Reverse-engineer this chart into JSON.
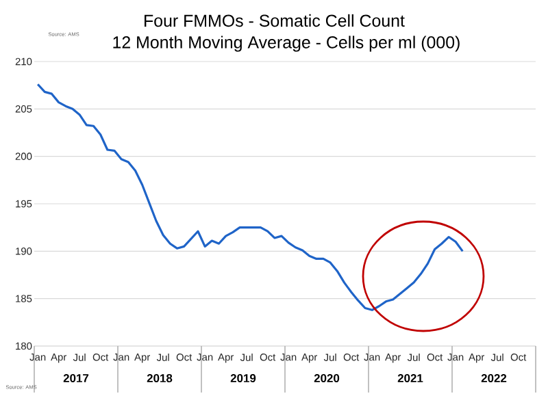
{
  "chart_data": {
    "type": "line",
    "title": "Four FMMOs - Somatic Cell Count",
    "subtitle": "12 Month Moving Average - Cells per ml (000)",
    "annotations": [
      "Source: AMS",
      "Source: AMS"
    ],
    "x": [
      "2017-01",
      "2017-02",
      "2017-03",
      "2017-04",
      "2017-05",
      "2017-06",
      "2017-07",
      "2017-08",
      "2017-09",
      "2017-10",
      "2017-11",
      "2017-12",
      "2018-01",
      "2018-02",
      "2018-03",
      "2018-04",
      "2018-05",
      "2018-06",
      "2018-07",
      "2018-08",
      "2018-09",
      "2018-10",
      "2018-11",
      "2018-12",
      "2019-01",
      "2019-02",
      "2019-03",
      "2019-04",
      "2019-05",
      "2019-06",
      "2019-07",
      "2019-08",
      "2019-09",
      "2019-10",
      "2019-11",
      "2019-12",
      "2020-01",
      "2020-02",
      "2020-03",
      "2020-04",
      "2020-05",
      "2020-06",
      "2020-07",
      "2020-08",
      "2020-09",
      "2020-10",
      "2020-11",
      "2020-12",
      "2021-01",
      "2021-02",
      "2021-03",
      "2021-04",
      "2021-05",
      "2021-06",
      "2021-07",
      "2021-08",
      "2021-09",
      "2021-10",
      "2021-11",
      "2021-12",
      "2022-01",
      "2022-02"
    ],
    "values": [
      207.6,
      206.8,
      206.6,
      205.7,
      205.3,
      205.0,
      204.4,
      203.3,
      203.2,
      202.3,
      200.7,
      200.6,
      199.7,
      199.4,
      198.5,
      197.0,
      195.1,
      193.2,
      191.7,
      190.8,
      190.3,
      190.5,
      191.3,
      192.1,
      190.5,
      191.1,
      190.8,
      191.6,
      192.0,
      192.5,
      192.5,
      192.5,
      192.5,
      192.1,
      191.4,
      191.6,
      190.9,
      190.4,
      190.1,
      189.5,
      189.2,
      189.2,
      188.8,
      187.9,
      186.7,
      185.7,
      184.8,
      184.0,
      183.8,
      184.2,
      184.7,
      184.9,
      185.5,
      186.1,
      186.7,
      187.6,
      188.7,
      190.2,
      190.8,
      191.5,
      191.0,
      190.0
    ],
    "color": "#1f64c8",
    "xlim": [
      "2016-12-16",
      "2022-12-16"
    ],
    "xticks": [
      {
        "value": "2017-01",
        "label": "Jan"
      },
      {
        "value": "2017-04",
        "label": "Apr"
      },
      {
        "value": "2017-07",
        "label": "Jul"
      },
      {
        "value": "2017-10",
        "label": "Oct"
      },
      {
        "value": "2018-01",
        "label": "Jan"
      },
      {
        "value": "2018-04",
        "label": "Apr"
      },
      {
        "value": "2018-07",
        "label": "Jul"
      },
      {
        "value": "2018-10",
        "label": "Oct"
      },
      {
        "value": "2019-01",
        "label": "Jan"
      },
      {
        "value": "2019-04",
        "label": "Apr"
      },
      {
        "value": "2019-07",
        "label": "Jul"
      },
      {
        "value": "2019-10",
        "label": "Oct"
      },
      {
        "value": "2020-01",
        "label": "Jan"
      },
      {
        "value": "2020-04",
        "label": "Apr"
      },
      {
        "value": "2020-07",
        "label": "Jul"
      },
      {
        "value": "2020-10",
        "label": "Oct"
      },
      {
        "value": "2021-01",
        "label": "Jan"
      },
      {
        "value": "2021-04",
        "label": "Apr"
      },
      {
        "value": "2021-07",
        "label": "Jul"
      },
      {
        "value": "2021-10",
        "label": "Oct"
      },
      {
        "value": "2022-01",
        "label": "Jan"
      },
      {
        "value": "2022-04",
        "label": "Apr"
      },
      {
        "value": "2022-07",
        "label": "Jul"
      },
      {
        "value": "2022-10",
        "label": "Oct"
      }
    ],
    "x2lim": [
      "2016-12-16",
      "2022-12-16"
    ],
    "x2ticks": [
      {
        "value": "2017-06-16",
        "label": "2017"
      },
      {
        "value": "2018-06-16",
        "label": "2018"
      },
      {
        "value": "2019-06-16",
        "label": "2019"
      },
      {
        "value": "2020-06-16",
        "label": "2020"
      },
      {
        "value": "2021-06-16",
        "label": "2021"
      },
      {
        "value": "2022-06-16",
        "label": "2022"
      }
    ],
    "ylim": [
      180,
      210
    ],
    "yticks": [
      180,
      185,
      190,
      195,
      200,
      205,
      210
    ],
    "grid": "y"
  }
}
